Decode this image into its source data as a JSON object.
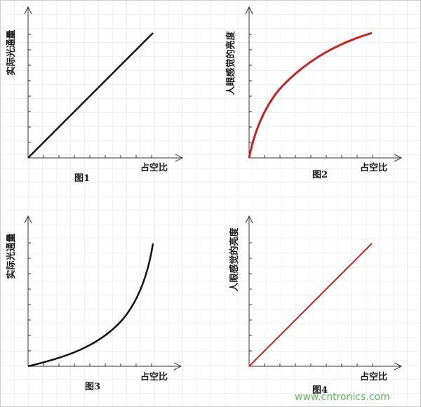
{
  "panels": [
    {
      "y_label": "实际光通量",
      "x_label": "占空比",
      "caption": "图1"
    },
    {
      "y_label": "人眼感觉的亮度",
      "x_label": "占空比",
      "caption": "图2"
    },
    {
      "y_label": "实际光通量",
      "x_label": "占空比",
      "caption": "图3"
    },
    {
      "y_label": "人眼感觉的亮度",
      "x_label": "占空比",
      "caption": "图4"
    }
  ],
  "watermark": "www.cntronics.com"
}
